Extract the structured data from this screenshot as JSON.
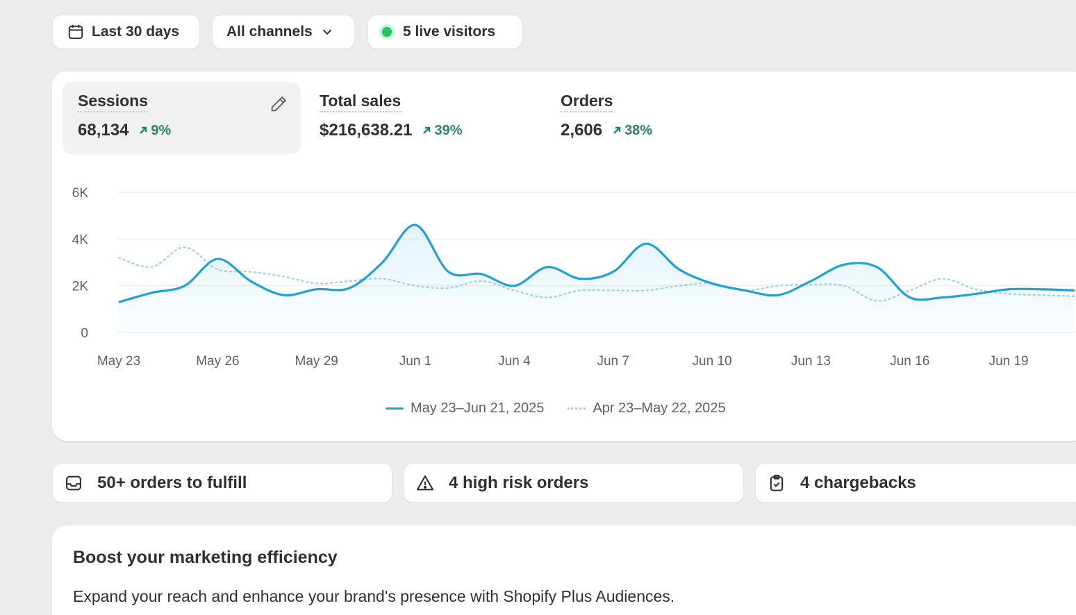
{
  "filters": {
    "date_range": "Last 30 days",
    "channels": "All channels",
    "live_visitors": "5 live visitors"
  },
  "metrics": [
    {
      "label": "Sessions",
      "value": "68,134",
      "change": "9%"
    },
    {
      "label": "Total sales",
      "value": "$216,638.21",
      "change": "39%"
    },
    {
      "label": "Orders",
      "value": "2,606",
      "change": "38%"
    }
  ],
  "chart_data": {
    "type": "line",
    "x": [
      "May 23",
      "May 24",
      "May 25",
      "May 26",
      "May 27",
      "May 28",
      "May 29",
      "May 30",
      "May 31",
      "Jun 1",
      "Jun 2",
      "Jun 3",
      "Jun 4",
      "Jun 5",
      "Jun 6",
      "Jun 7",
      "Jun 8",
      "Jun 9",
      "Jun 10",
      "Jun 11",
      "Jun 12",
      "Jun 13",
      "Jun 14",
      "Jun 15",
      "Jun 16",
      "Jun 17",
      "Jun 18",
      "Jun 19",
      "Jun 20",
      "Jun 21"
    ],
    "x_tick_labels": [
      "May 23",
      "May 26",
      "May 29",
      "Jun 1",
      "Jun 4",
      "Jun 7",
      "Jun 10",
      "Jun 13",
      "Jun 16",
      "Jun 19"
    ],
    "y_tick_labels": [
      "6K",
      "4K",
      "2K",
      "0"
    ],
    "ylim": [
      0,
      6000
    ],
    "series": [
      {
        "name": "May 23–Jun 21, 2025",
        "style": "solid",
        "color": "#1ea1d9",
        "values": [
          1300,
          1700,
          2000,
          3150,
          2200,
          1600,
          1850,
          1900,
          3000,
          4600,
          2600,
          2500,
          2000,
          2800,
          2300,
          2600,
          3800,
          2700,
          2100,
          1800,
          1600,
          2200,
          2900,
          2800,
          1500,
          1500,
          1650,
          1850,
          1850,
          1800
        ]
      },
      {
        "name": "Apr 23–May 22, 2025",
        "style": "dotted",
        "color": "#9bd3df",
        "values": [
          3200,
          2800,
          3650,
          2700,
          2600,
          2400,
          2100,
          2200,
          2300,
          2000,
          1900,
          2200,
          1800,
          1500,
          1800,
          1800,
          1800,
          2000,
          2100,
          1800,
          2000,
          2050,
          2000,
          1350,
          1800,
          2300,
          1850,
          1650,
          1600,
          1550
        ]
      }
    ],
    "grid": true,
    "legend": "bottom-center"
  },
  "tasks": [
    {
      "label": "50+ orders to fulfill",
      "icon": "inbox-icon"
    },
    {
      "label": "4 high risk orders",
      "icon": "alert-triangle-icon"
    },
    {
      "label": "4 chargebacks",
      "icon": "clipboard-check-icon"
    }
  ],
  "promo": {
    "title": "Boost your marketing efficiency",
    "description": "Expand your reach and enhance your brand's presence with Shopify Plus Audiences."
  }
}
